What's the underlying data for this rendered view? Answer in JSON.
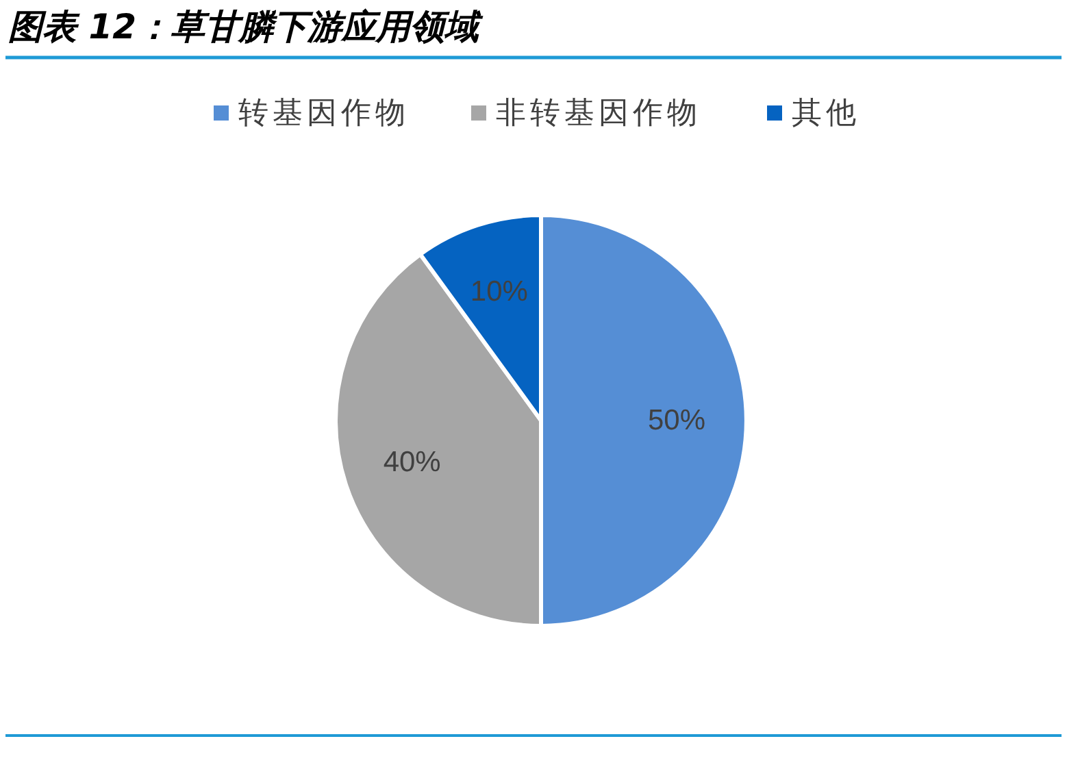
{
  "chart_data": {
    "type": "pie",
    "title": "图表 12：草甘膦下游应用领域",
    "categories": [
      "转基因作物",
      "非转基因作物",
      "其他"
    ],
    "values": [
      50,
      40,
      10
    ],
    "colors": [
      "#558ed5",
      "#a6a6a6",
      "#0563c1"
    ],
    "value_labels": [
      "50%",
      "40%",
      "10%"
    ],
    "legend": "top"
  }
}
